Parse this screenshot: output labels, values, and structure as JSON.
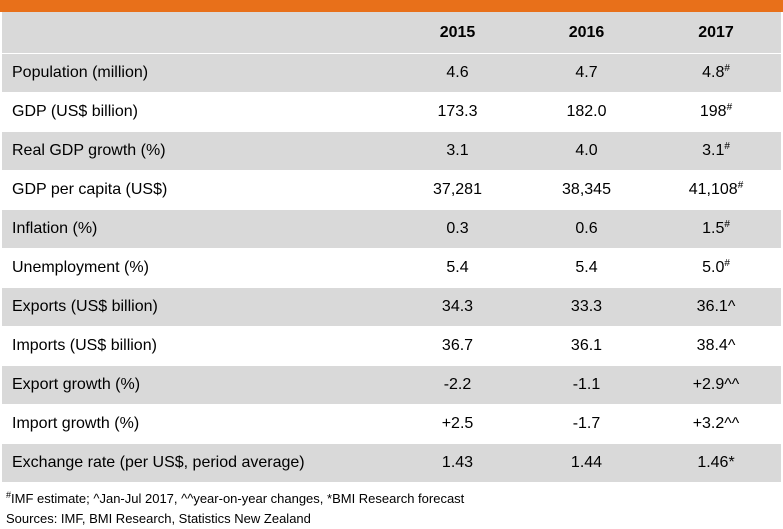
{
  "header": {
    "label": "",
    "years": [
      "2015",
      "2016",
      "2017"
    ]
  },
  "rows": [
    {
      "label": "Population (million)",
      "v2015": "4.6",
      "v2016": "4.7",
      "v2017": "4.8",
      "sup": "#"
    },
    {
      "label": "GDP (US$ billion)",
      "v2015": "173.3",
      "v2016": "182.0",
      "v2017": "198",
      "sup": "#"
    },
    {
      "label": "Real GDP growth (%)",
      "v2015": "3.1",
      "v2016": "4.0",
      "v2017": "3.1",
      "sup": "#"
    },
    {
      "label": "GDP per capita (US$)",
      "v2015": "37,281",
      "v2016": "38,345",
      "v2017": "41,108",
      "sup": "#"
    },
    {
      "label": "Inflation (%)",
      "v2015": "0.3",
      "v2016": "0.6",
      "v2017": "1.5",
      "sup": "#"
    },
    {
      "label": "Unemployment (%)",
      "v2015": "5.4",
      "v2016": "5.4",
      "v2017": "5.0",
      "sup": "#"
    },
    {
      "label": "Exports (US$ billion)",
      "v2015": "34.3",
      "v2016": "33.3",
      "v2017": "36.1^",
      "sup": ""
    },
    {
      "label": "Imports (US$ billion)",
      "v2015": "36.7",
      "v2016": "36.1",
      "v2017": "38.4^",
      "sup": ""
    },
    {
      "label": "Export growth (%)",
      "v2015": "-2.2",
      "v2016": "-1.1",
      "v2017": "+2.9^^",
      "sup": ""
    },
    {
      "label": "Import growth (%)",
      "v2015": "+2.5",
      "v2016": "-1.7",
      "v2017": "+3.2^^",
      "sup": ""
    },
    {
      "label": "Exchange rate (per US$, period average)",
      "v2015": "1.43",
      "v2016": "1.44",
      "v2017": "1.46*",
      "sup": ""
    }
  ],
  "notes": {
    "footnote_mark": "#",
    "footnote": "IMF estimate; ^Jan-Jul 2017, ^^year-on-year changes, *BMI Research forecast",
    "sources": "Sources: IMF, BMI Research, Statistics New Zealand"
  },
  "colors": {
    "accent_bar": "#e8701a",
    "shade": "#d9d9d9"
  }
}
